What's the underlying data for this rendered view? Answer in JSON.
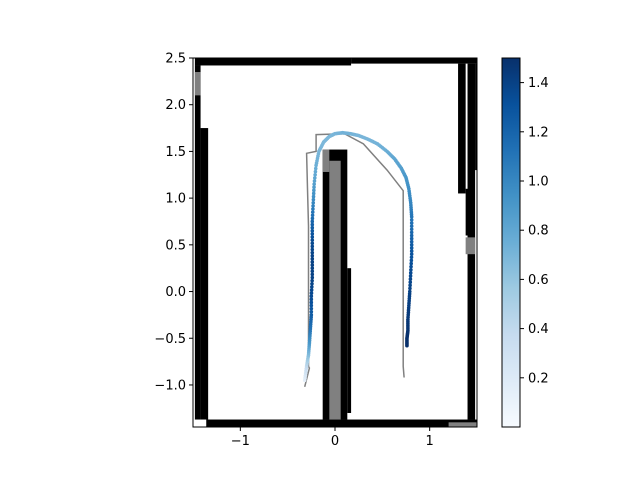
{
  "chart_data": {
    "type": "heatmap",
    "title": "",
    "xlabel": "",
    "ylabel": "",
    "xlim": [
      -1.5,
      1.5
    ],
    "ylim": [
      -1.45,
      2.5
    ],
    "x_ticks": [
      -1,
      0,
      1
    ],
    "x_tick_labels": [
      "−1",
      "0",
      "1"
    ],
    "y_ticks": [
      -1.0,
      -0.5,
      0.0,
      0.5,
      1.0,
      1.5,
      2.0,
      2.5
    ],
    "y_tick_labels": [
      "−1.0",
      "−0.5",
      "0.0",
      "0.5",
      "1.0",
      "1.5",
      "2.0",
      "2.5"
    ],
    "occupancy_grid": {
      "cell_size": 0.08,
      "occupied_color": "#000000",
      "unknown_color": "#808080",
      "free_color": "#ffffff",
      "occupied_cells": [
        {
          "x0": -1.48,
          "x1": 0.17,
          "y0": 2.42,
          "y1": 2.5
        },
        {
          "x0": 0.17,
          "x1": 1.5,
          "y0": 2.44,
          "y1": 2.5
        },
        {
          "x0": -1.42,
          "x1": -1.34,
          "y0": -1.37,
          "y1": 1.75
        },
        {
          "x0": -1.48,
          "x1": -1.42,
          "y0": -1.37,
          "y1": 2.42
        },
        {
          "x0": -1.36,
          "x1": 1.5,
          "y0": -1.45,
          "y1": -1.37
        },
        {
          "x0": 1.4,
          "x1": 1.48,
          "y0": -1.37,
          "y1": 2.44
        },
        {
          "x0": 1.48,
          "x1": 1.5,
          "y0": 1.3,
          "y1": 2.44
        },
        {
          "x0": 1.3,
          "x1": 1.38,
          "y0": 1.05,
          "y1": 2.44
        },
        {
          "x0": 1.38,
          "x1": 1.42,
          "y0": 0.6,
          "y1": 1.1
        },
        {
          "x0": -0.13,
          "x1": 0.13,
          "y0": -1.37,
          "y1": 1.52
        },
        {
          "x0": 0.13,
          "x1": 0.17,
          "y0": -1.3,
          "y1": 0.25
        }
      ],
      "unknown_cells": [
        {
          "x0": -1.48,
          "x1": -1.42,
          "y0": 2.1,
          "y1": 2.35
        },
        {
          "x0": -0.13,
          "x1": -0.06,
          "y0": 1.28,
          "y1": 1.52
        },
        {
          "x0": -0.06,
          "x1": 0.06,
          "y0": -1.37,
          "y1": 1.4
        },
        {
          "x0": 1.38,
          "x1": 1.48,
          "y0": 0.4,
          "y1": 0.58
        },
        {
          "x0": 1.2,
          "x1": 1.5,
          "y0": -1.45,
          "y1": -1.4
        }
      ]
    },
    "series": [
      {
        "type": "line",
        "color": "#808080",
        "x": [
          -0.28,
          -0.28,
          -0.28,
          -0.28,
          -0.28,
          -0.29,
          -0.3,
          -0.32,
          -0.27,
          -0.2,
          -0.2,
          0.1,
          0.3,
          0.55,
          0.72,
          0.72,
          0.72,
          0.72,
          0.72,
          0.73
        ],
        "y": [
          -0.8,
          -0.5,
          -0.1,
          0.3,
          0.7,
          1.1,
          1.48,
          -1.02,
          -0.82,
          1.5,
          1.68,
          1.69,
          1.58,
          1.3,
          1.08,
          0.6,
          0.1,
          -0.4,
          -0.8,
          -0.92
        ],
        "path_order": [
          7,
          8,
          0,
          1,
          2,
          3,
          4,
          5,
          6,
          9,
          10,
          11,
          12,
          13,
          14,
          15,
          16,
          17,
          18,
          19
        ]
      },
      {
        "type": "scatter",
        "colormap": "Blues",
        "x": [
          -0.32,
          -0.3,
          -0.28,
          -0.27,
          -0.26,
          -0.25,
          -0.25,
          -0.24,
          -0.24,
          -0.24,
          -0.24,
          -0.23,
          -0.22,
          -0.2,
          -0.17,
          -0.12,
          -0.06,
          0.0,
          0.08,
          0.16,
          0.25,
          0.35,
          0.45,
          0.55,
          0.63,
          0.7,
          0.75,
          0.78,
          0.8,
          0.81,
          0.81,
          0.81,
          0.8,
          0.79,
          0.78,
          0.77,
          0.77,
          0.76,
          0.76
        ],
        "y": [
          -0.95,
          -0.8,
          -0.68,
          -0.55,
          -0.4,
          -0.25,
          -0.05,
          0.15,
          0.35,
          0.55,
          0.75,
          0.95,
          1.15,
          1.35,
          1.5,
          1.6,
          1.66,
          1.69,
          1.7,
          1.69,
          1.67,
          1.63,
          1.58,
          1.5,
          1.42,
          1.32,
          1.22,
          1.1,
          0.95,
          0.8,
          0.6,
          0.4,
          0.2,
          0.0,
          -0.15,
          -0.3,
          -0.42,
          -0.5,
          -0.58
        ],
        "values": [
          0.15,
          0.4,
          0.65,
          0.9,
          1.1,
          1.25,
          1.35,
          1.4,
          1.4,
          1.35,
          1.2,
          1.0,
          0.85,
          0.75,
          0.7,
          0.68,
          0.68,
          0.7,
          0.72,
          0.72,
          0.7,
          0.7,
          0.72,
          0.75,
          0.8,
          0.85,
          0.9,
          0.95,
          1.0,
          1.1,
          1.2,
          1.3,
          1.35,
          1.4,
          1.42,
          1.45,
          1.48,
          1.5,
          1.5
        ]
      }
    ],
    "colorbar": {
      "colormap": "Blues",
      "range": [
        0.0,
        1.5
      ],
      "ticks": [
        0.2,
        0.4,
        0.6,
        0.8,
        1.0,
        1.2,
        1.4
      ],
      "tick_labels": [
        "0.2",
        "0.4",
        "0.6",
        "0.8",
        "1.0",
        "1.2",
        "1.4"
      ]
    },
    "grid": false,
    "legend": "none"
  }
}
